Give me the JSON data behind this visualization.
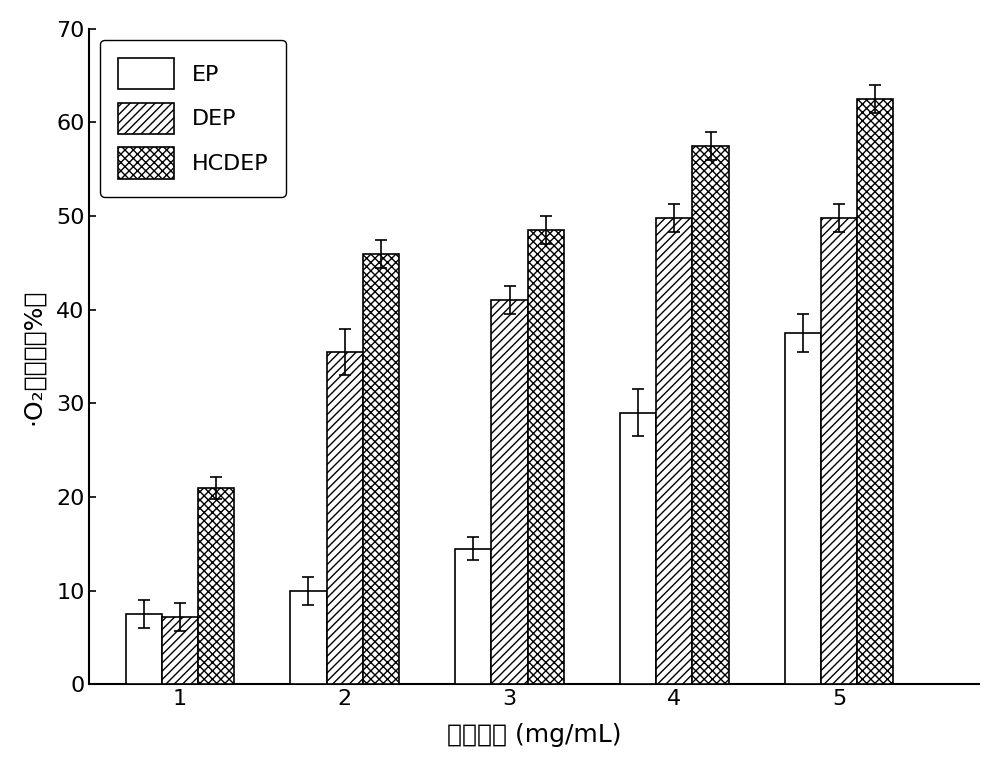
{
  "categories": [
    1,
    2,
    3,
    4,
    5
  ],
  "EP_values": [
    7.5,
    10.0,
    14.5,
    29.0,
    37.5
  ],
  "DEP_values": [
    7.2,
    35.5,
    41.0,
    49.8,
    49.8
  ],
  "HCDEP_values": [
    21.0,
    46.0,
    48.5,
    57.5,
    62.5
  ],
  "EP_errors": [
    1.5,
    1.5,
    1.2,
    2.5,
    2.0
  ],
  "DEP_errors": [
    1.5,
    2.5,
    1.5,
    1.5,
    1.5
  ],
  "HCDEP_errors": [
    1.2,
    1.5,
    1.5,
    1.5,
    1.5
  ],
  "xlabel": "样品浓度 (mg/mL)",
  "ylabel": "·O₂清除率（%）",
  "ylim": [
    0,
    70
  ],
  "yticks": [
    0,
    10,
    20,
    30,
    40,
    50,
    60,
    70
  ],
  "xticks": [
    1,
    2,
    3,
    4,
    5
  ],
  "bar_width": 0.22,
  "legend_labels": [
    "EP",
    "DEP",
    "HCDEP"
  ],
  "background_color": "#ffffff",
  "bar_edge_color": "#000000",
  "bar_face_color": "#ffffff",
  "xlabel_fontsize": 18,
  "ylabel_fontsize": 18,
  "tick_fontsize": 16,
  "legend_fontsize": 16
}
